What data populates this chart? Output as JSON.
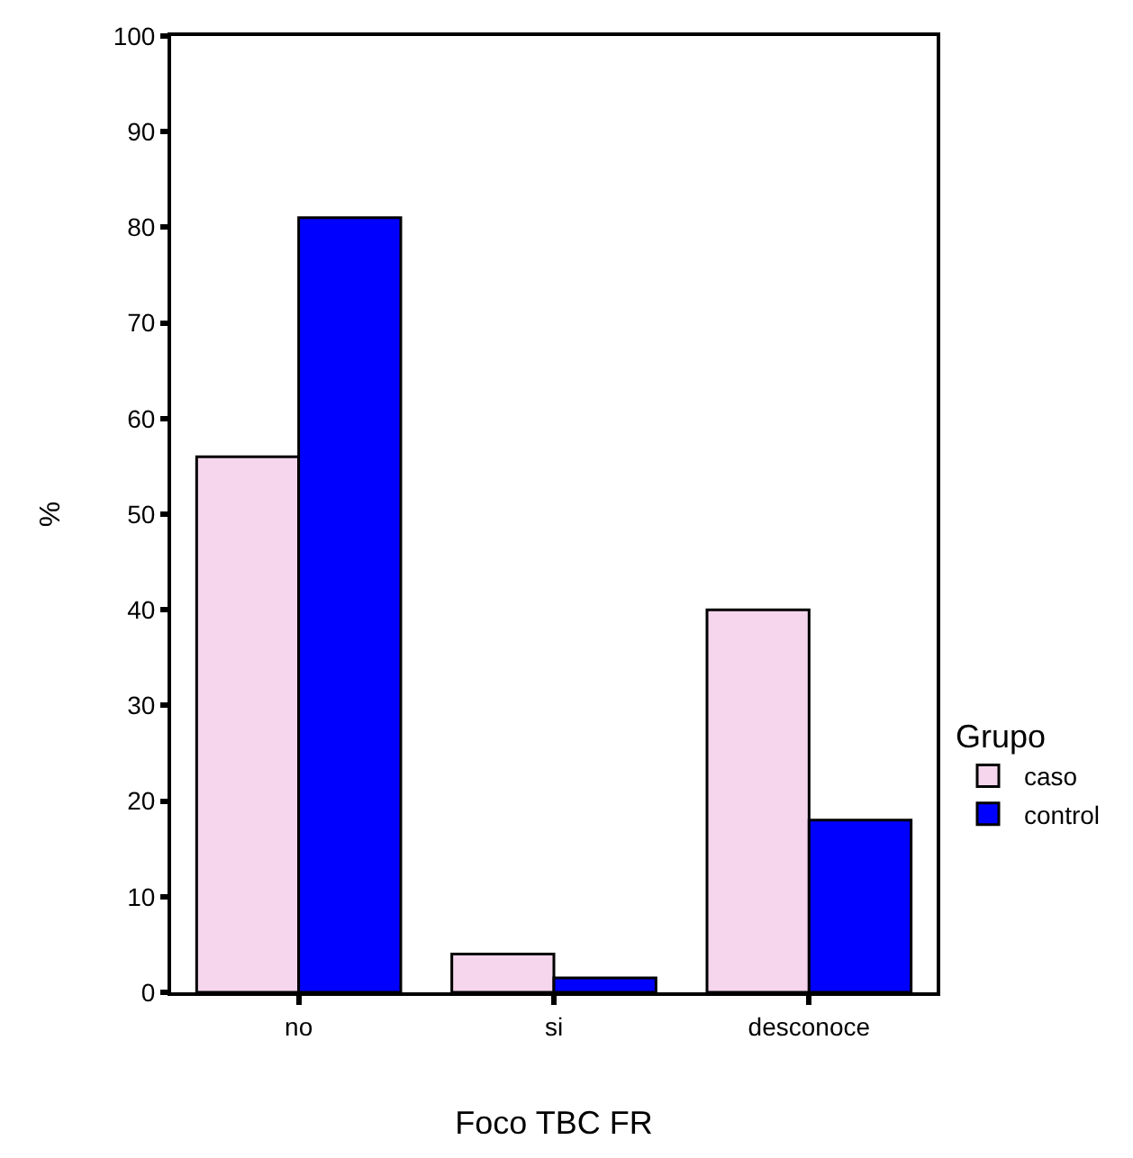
{
  "chart_data": {
    "type": "bar",
    "xlabel": "Foco TBC FR",
    "ylabel": "%",
    "legend_title": "Grupo",
    "categories": [
      "no",
      "si",
      "desconoce"
    ],
    "series": [
      {
        "name": "caso",
        "color": "#f5d6ec",
        "values": [
          56,
          4,
          40
        ]
      },
      {
        "name": "control",
        "color": "#0000ff",
        "values": [
          81,
          1.5,
          18
        ]
      }
    ],
    "ylim": [
      0,
      100
    ],
    "yticks": [
      0,
      10,
      20,
      30,
      40,
      50,
      60,
      70,
      80,
      90,
      100
    ],
    "legend": "right"
  }
}
